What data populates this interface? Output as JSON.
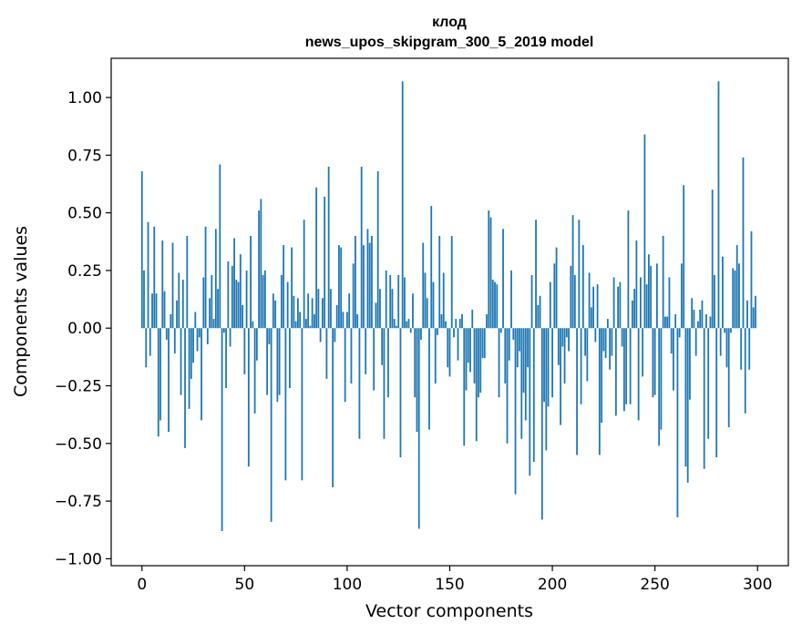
{
  "chart_data": {
    "type": "bar",
    "title": "клод",
    "subtitle": "news_upos_skipgram_300_5_2019 model",
    "xlabel": "Vector components",
    "ylabel": "Components values",
    "xlim": [
      -15,
      315
    ],
    "ylim": [
      -1.03,
      1.17
    ],
    "xticks": [
      0,
      50,
      100,
      150,
      200,
      250,
      300
    ],
    "xtick_labels": [
      "0",
      "50",
      "100",
      "150",
      "200",
      "250",
      "300"
    ],
    "yticks": [
      -1.0,
      -0.75,
      -0.5,
      -0.25,
      0.0,
      0.25,
      0.5,
      0.75,
      1.0
    ],
    "ytick_labels": [
      "−1.00",
      "−0.75",
      "−0.50",
      "−0.25",
      "0.00",
      "0.25",
      "0.50",
      "0.75",
      "1.00"
    ],
    "grid": false,
    "bar_color": "#1f77b4",
    "x": [
      0,
      1,
      2,
      3,
      4,
      5,
      6,
      7,
      8,
      9,
      10,
      11,
      12,
      13,
      14,
      15,
      16,
      17,
      18,
      19,
      20,
      21,
      22,
      23,
      24,
      25,
      26,
      27,
      28,
      29,
      30,
      31,
      32,
      33,
      34,
      35,
      36,
      37,
      38,
      39,
      40,
      41,
      42,
      43,
      44,
      45,
      46,
      47,
      48,
      49,
      50,
      51,
      52,
      53,
      54,
      55,
      56,
      57,
      58,
      59,
      60,
      61,
      62,
      63,
      64,
      65,
      66,
      67,
      68,
      69,
      70,
      71,
      72,
      73,
      74,
      75,
      76,
      77,
      78,
      79,
      80,
      81,
      82,
      83,
      84,
      85,
      86,
      87,
      88,
      89,
      90,
      91,
      92,
      93,
      94,
      95,
      96,
      97,
      98,
      99,
      100,
      101,
      102,
      103,
      104,
      105,
      106,
      107,
      108,
      109,
      110,
      111,
      112,
      113,
      114,
      115,
      116,
      117,
      118,
      119,
      120,
      121,
      122,
      123,
      124,
      125,
      126,
      127,
      128,
      129,
      130,
      131,
      132,
      133,
      134,
      135,
      136,
      137,
      138,
      139,
      140,
      141,
      142,
      143,
      144,
      145,
      146,
      147,
      148,
      149,
      150,
      151,
      152,
      153,
      154,
      155,
      156,
      157,
      158,
      159,
      160,
      161,
      162,
      163,
      164,
      165,
      166,
      167,
      168,
      169,
      170,
      171,
      172,
      173,
      174,
      175,
      176,
      177,
      178,
      179,
      180,
      181,
      182,
      183,
      184,
      185,
      186,
      187,
      188,
      189,
      190,
      191,
      192,
      193,
      194,
      195,
      196,
      197,
      198,
      199,
      200,
      201,
      202,
      203,
      204,
      205,
      206,
      207,
      208,
      209,
      210,
      211,
      212,
      213,
      214,
      215,
      216,
      217,
      218,
      219,
      220,
      221,
      222,
      223,
      224,
      225,
      226,
      227,
      228,
      229,
      230,
      231,
      232,
      233,
      234,
      235,
      236,
      237,
      238,
      239,
      240,
      241,
      242,
      243,
      244,
      245,
      246,
      247,
      248,
      249,
      250,
      251,
      252,
      253,
      254,
      255,
      256,
      257,
      258,
      259,
      260,
      261,
      262,
      263,
      264,
      265,
      266,
      267,
      268,
      269,
      270,
      271,
      272,
      273,
      274,
      275,
      276,
      277,
      278,
      279,
      280,
      281,
      282,
      283,
      284,
      285,
      286,
      287,
      288,
      289,
      290,
      291,
      292,
      293,
      294,
      295,
      296,
      297,
      298,
      299
    ],
    "values": [
      0.68,
      0.25,
      -0.17,
      0.46,
      -0.12,
      0.15,
      0.44,
      0.15,
      -0.47,
      -0.4,
      0.38,
      0.16,
      -0.05,
      -0.45,
      0.06,
      0.37,
      -0.11,
      0.12,
      0.24,
      -0.29,
      0.21,
      -0.52,
      0.4,
      -0.35,
      -0.22,
      -0.15,
      0.07,
      -0.1,
      -0.04,
      -0.4,
      0.22,
      0.44,
      -0.07,
      0.13,
      0.23,
      0.04,
      0.43,
      0.17,
      0.71,
      -0.88,
      -0.02,
      -0.26,
      0.29,
      -0.08,
      0.27,
      0.39,
      0.21,
      0.2,
      0.32,
      0.1,
      -0.2,
      0.25,
      -0.6,
      0.4,
      0.03,
      -0.37,
      -0.14,
      0.51,
      0.56,
      0.23,
      0.25,
      -0.29,
      -0.07,
      -0.84,
      0.15,
      0.12,
      -0.32,
      -0.29,
      0.23,
      0.36,
      -0.66,
      0.2,
      -0.26,
      0.35,
      0.14,
      0.03,
      0.13,
      0.07,
      -0.66,
      0.47,
      0.04,
      0.15,
      0.01,
      0.13,
      0.06,
      0.61,
      0.17,
      -0.06,
      0.13,
      0.57,
      -0.22,
      0.7,
      0.17,
      -0.69,
      -0.06,
      0.1,
      0.36,
      0.35,
      0.07,
      -0.32,
      0.07,
      0.15,
      -0.24,
      0.28,
      0.4,
      0.06,
      -0.48,
      0.7,
      0.36,
      -0.2,
      0.43,
      0.37,
      0.4,
      -0.27,
      0.11,
      0.68,
      0.17,
      -0.16,
      -0.48,
      0.25,
      -0.3,
      0.23,
      0.17,
      0.04,
      0.01,
      0.23,
      -0.56,
      1.07,
      0.22,
      0.03,
      0.04,
      -0.02,
      0.15,
      -0.3,
      -0.45,
      -0.87,
      -0.05,
      0.37,
      0.24,
      0.13,
      -0.44,
      0.53,
      0.2,
      -0.24,
      -0.03,
      0.4,
      0.06,
      0.24,
      0.03,
      -0.17,
      -0.21,
      0.4,
      -0.04,
      0.04,
      -0.14,
      0.04,
      0.06,
      -0.51,
      -0.27,
      -0.15,
      -0.19,
      0.08,
      -0.24,
      -0.49,
      -0.3,
      -0.28,
      -0.13,
      -0.13,
      0.06,
      0.51,
      0.48,
      0.21,
      0.2,
      0.19,
      -0.3,
      -0.02,
      0.43,
      -0.24,
      -0.5,
      -0.14,
      0.25,
      -0.05,
      -0.72,
      -0.17,
      -0.1,
      -0.48,
      -0.28,
      -0.4,
      -0.17,
      -0.64,
      0.23,
      -0.58,
      0.47,
      0.1,
      0.14,
      -0.83,
      -0.32,
      -0.53,
      -0.34,
      0.2,
      -0.3,
      0.28,
      0.35,
      -0.16,
      -0.42,
      -0.08,
      -0.24,
      -0.04,
      -0.1,
      0.27,
      0.49,
      0.23,
      -0.55,
      0.47,
      -0.33,
      0.36,
      -0.12,
      -0.23,
      0.24,
      0.09,
      0.18,
      -0.06,
      0.19,
      -0.55,
      -0.41,
      -0.1,
      -0.13,
      0.04,
      -0.18,
      -0.12,
      0.22,
      -0.38,
      0.18,
      0.2,
      -0.08,
      -0.36,
      -0.33,
      0.51,
      -0.33,
      0.12,
      0.17,
      0.38,
      -0.4,
      0.22,
      -0.21,
      0.84,
      0.19,
      0.32,
      0.27,
      -0.3,
      -0.29,
      0.28,
      -0.51,
      -0.44,
      0.4,
      0.05,
      0.05,
      0.22,
      -0.11,
      -0.27,
      0.06,
      -0.82,
      -0.04,
      0.28,
      0.62,
      -0.6,
      -0.67,
      -0.31,
      0.13,
      0.08,
      -0.12,
      0.03,
      0.08,
      0.12,
      -0.61,
      0.06,
      -0.48,
      0.05,
      0.6,
      0.23,
      -0.56,
      1.07,
      -0.12,
      0.31,
      -0.02,
      -0.17,
      -0.43,
      -0.02,
      0.26,
      0.25,
      0.36,
      0.28,
      -0.18,
      0.74,
      -0.37,
      0.12,
      -0.18,
      0.42,
      0.09,
      0.14
    ]
  }
}
